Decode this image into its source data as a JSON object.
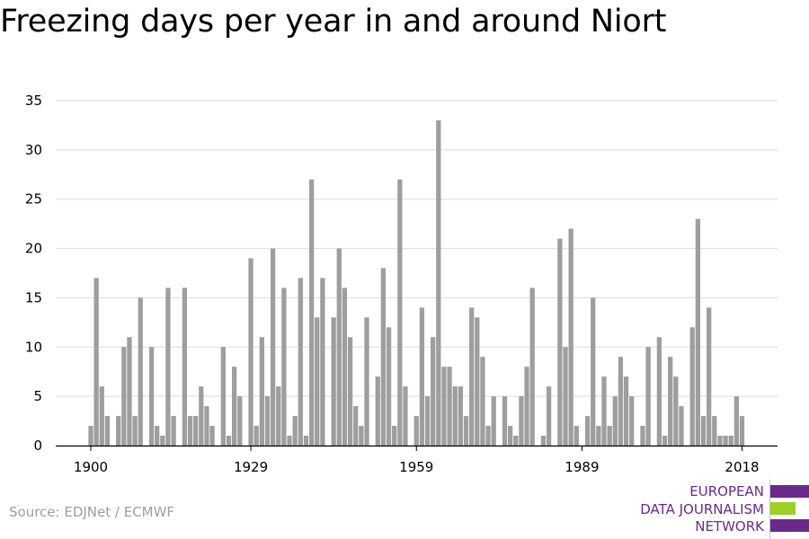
{
  "title": "Freezing days per year in and around Niort",
  "source": "Source: EDJNet / ECMWF",
  "logo": {
    "line1": "EUROPEAN",
    "line2": "DATA JOURNALISM",
    "line3": "NETWORK",
    "colors": [
      "#6a2a8c",
      "#9bd125",
      "#6a2a8c"
    ]
  },
  "colors": {
    "bar": "#9e9e9e",
    "grid": "#dddddd",
    "axis": "#000000"
  },
  "chart_data": {
    "type": "bar",
    "xlabel": "",
    "ylabel": "",
    "ylim": [
      0,
      35
    ],
    "yticks": [
      0,
      5,
      10,
      15,
      20,
      25,
      30,
      35
    ],
    "xticks": [
      1900,
      1929,
      1959,
      1989,
      2018
    ],
    "grid": true,
    "x": [
      1900,
      1901,
      1902,
      1903,
      1904,
      1905,
      1906,
      1907,
      1908,
      1909,
      1910,
      1911,
      1912,
      1913,
      1914,
      1915,
      1916,
      1917,
      1918,
      1919,
      1920,
      1921,
      1922,
      1923,
      1924,
      1925,
      1926,
      1927,
      1928,
      1929,
      1930,
      1931,
      1932,
      1933,
      1934,
      1935,
      1936,
      1937,
      1938,
      1939,
      1940,
      1941,
      1942,
      1943,
      1944,
      1945,
      1946,
      1947,
      1948,
      1949,
      1950,
      1951,
      1952,
      1953,
      1954,
      1955,
      1956,
      1957,
      1958,
      1959,
      1960,
      1961,
      1962,
      1963,
      1964,
      1965,
      1966,
      1967,
      1968,
      1969,
      1970,
      1971,
      1972,
      1973,
      1974,
      1975,
      1976,
      1977,
      1978,
      1979,
      1980,
      1981,
      1982,
      1983,
      1984,
      1985,
      1986,
      1987,
      1988,
      1989,
      1990,
      1991,
      1992,
      1993,
      1994,
      1995,
      1996,
      1997,
      1998,
      1999,
      2000,
      2001,
      2002,
      2003,
      2004,
      2005,
      2006,
      2007,
      2008,
      2009,
      2010,
      2011,
      2012,
      2013,
      2014,
      2015,
      2016,
      2017,
      2018
    ],
    "values": [
      2,
      17,
      6,
      3,
      0,
      3,
      10,
      11,
      3,
      15,
      0,
      10,
      2,
      1,
      16,
      3,
      0,
      16,
      3,
      3,
      6,
      4,
      2,
      0,
      10,
      1,
      8,
      5,
      0,
      19,
      2,
      11,
      5,
      20,
      6,
      16,
      1,
      3,
      17,
      1,
      27,
      13,
      17,
      0,
      13,
      20,
      16,
      11,
      4,
      2,
      13,
      0,
      7,
      18,
      12,
      2,
      27,
      6,
      0,
      3,
      14,
      5,
      11,
      33,
      8,
      8,
      6,
      6,
      3,
      14,
      13,
      9,
      2,
      5,
      0,
      5,
      2,
      1,
      5,
      8,
      16,
      0,
      1,
      6,
      0,
      21,
      10,
      22,
      2,
      0,
      3,
      15,
      2,
      7,
      2,
      5,
      9,
      7,
      5,
      0,
      2,
      10,
      0,
      11,
      1,
      9,
      7,
      4,
      0,
      12,
      23,
      3,
      14,
      3,
      1,
      1,
      1,
      5,
      3
    ]
  }
}
